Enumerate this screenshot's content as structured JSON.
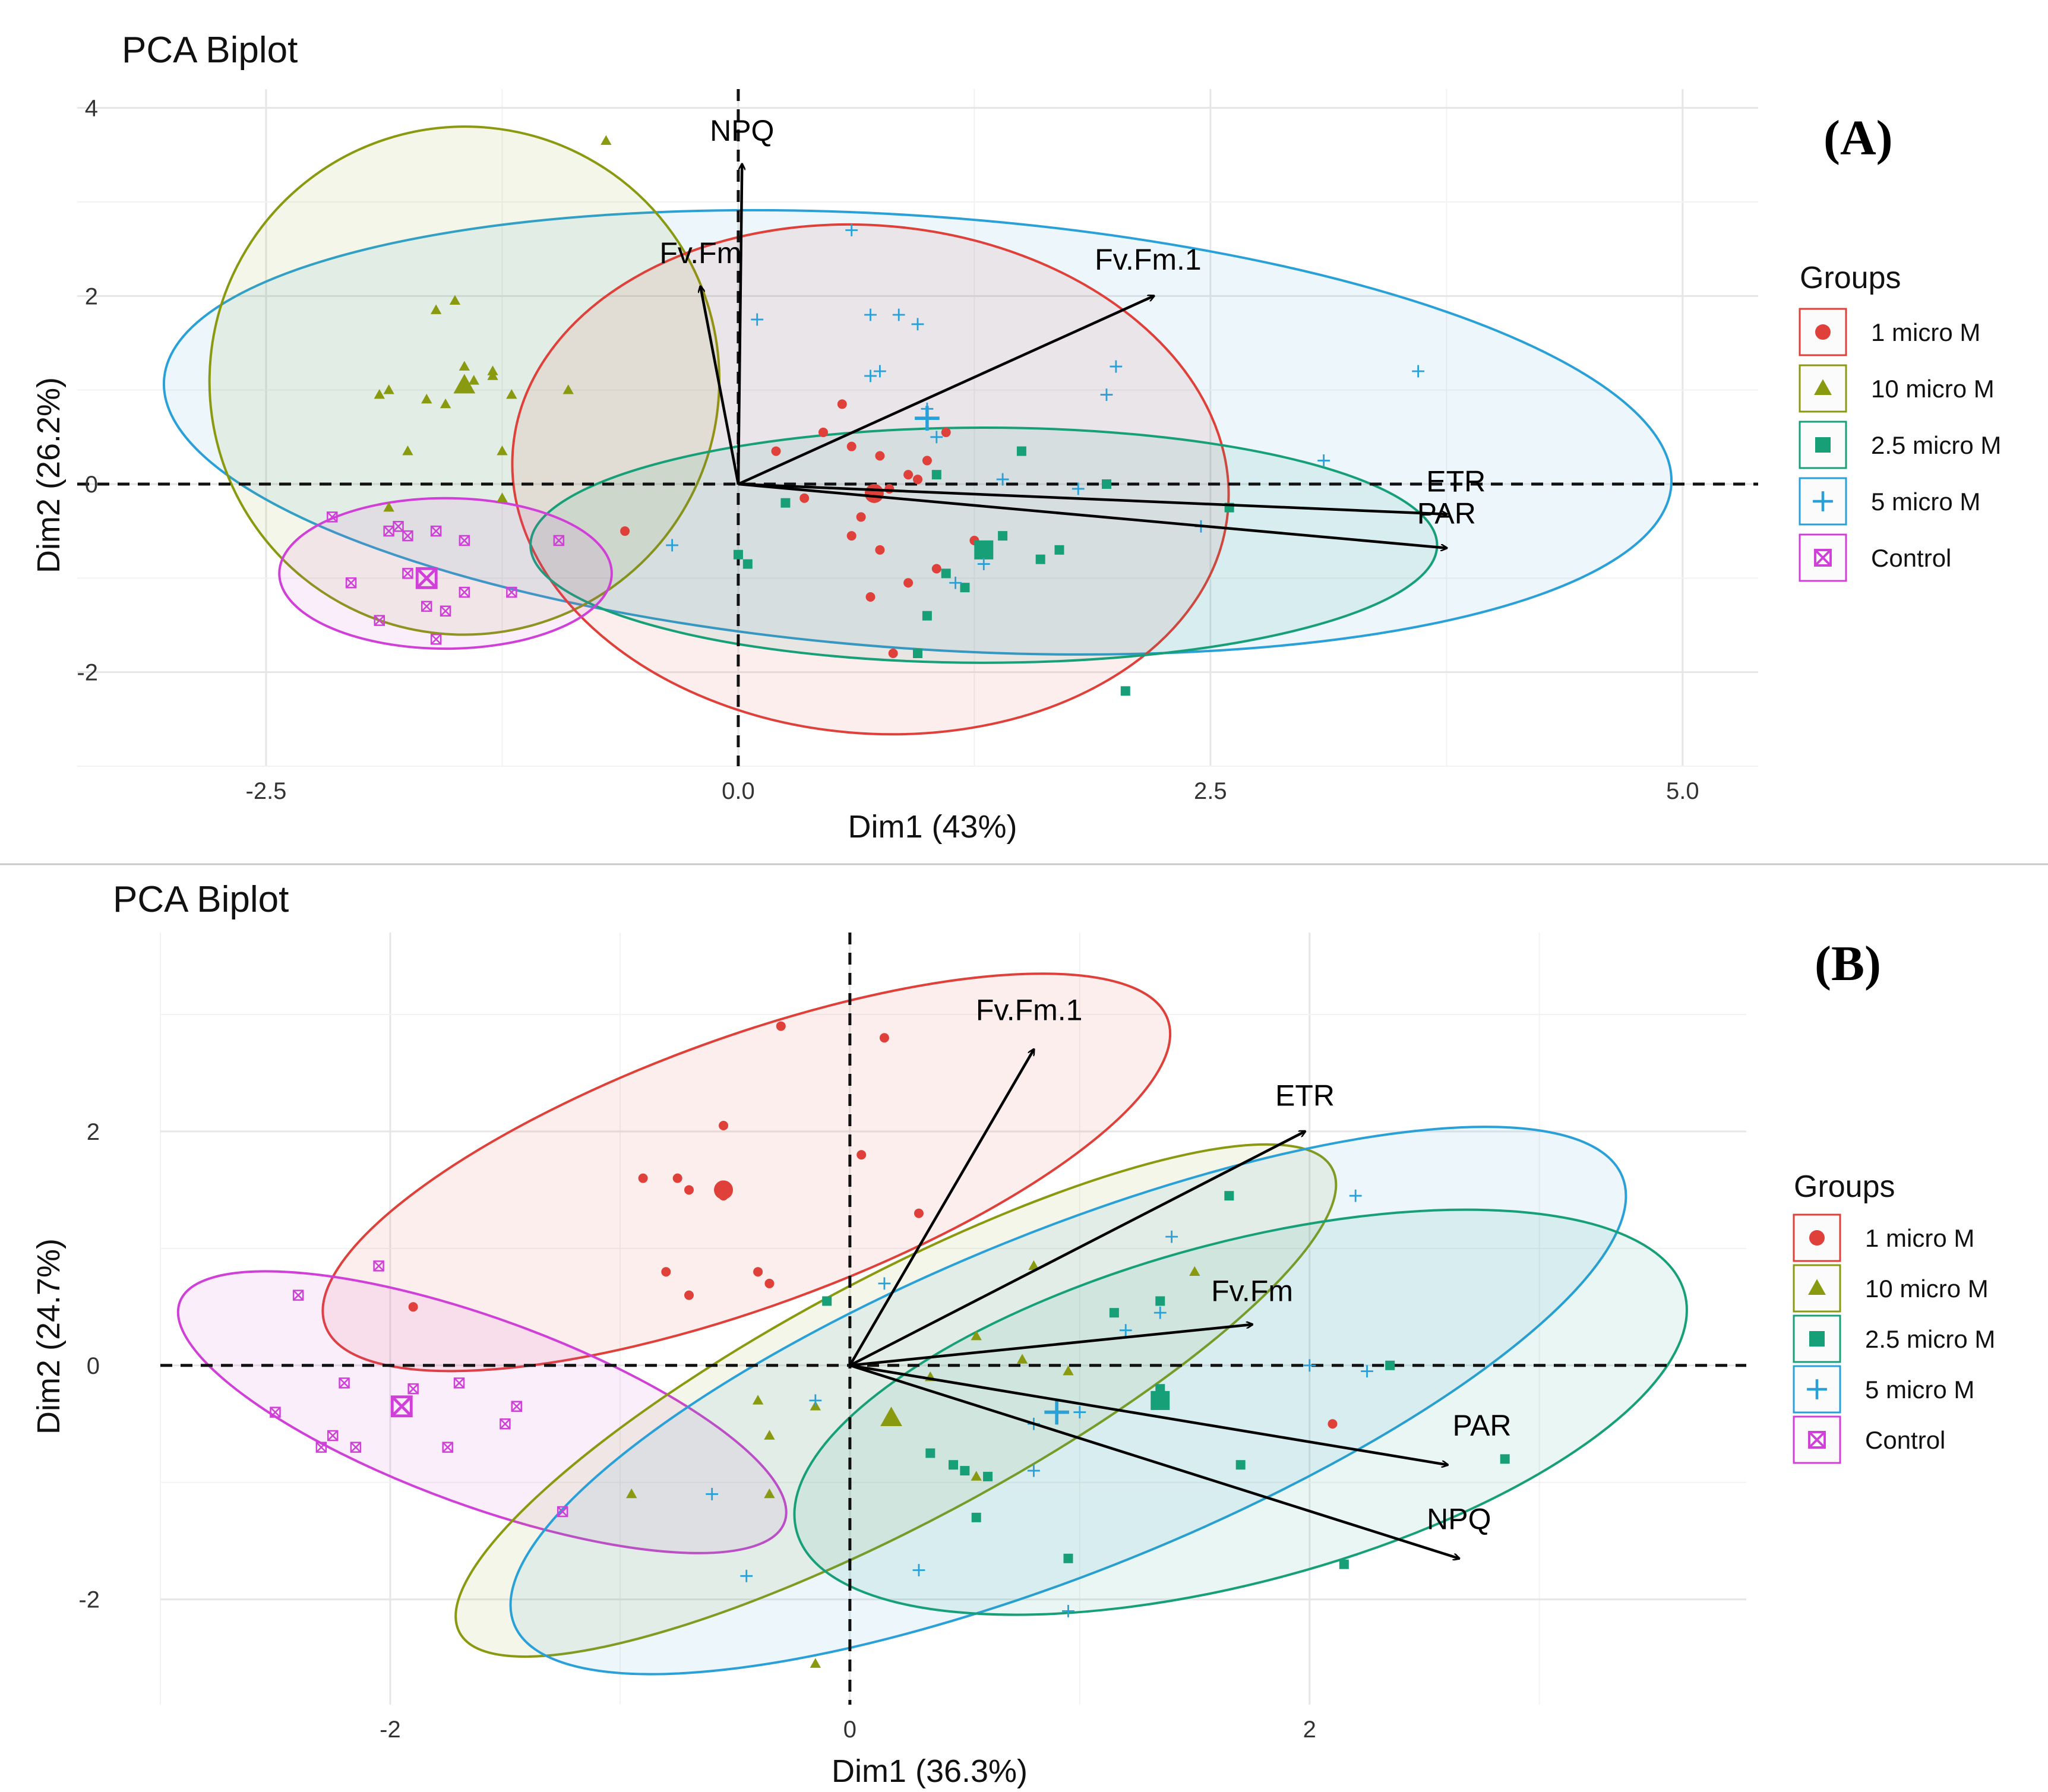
{
  "chart_data": [
    {
      "type": "scatter",
      "panel": "(A)",
      "title": "PCA   Biplot",
      "xlabel": "Dim1 (43%)",
      "ylabel": "Dim2 (26.2%)",
      "xlim": [
        -3.5,
        5.4
      ],
      "ylim": [
        -3.0,
        4.2
      ],
      "xticks": [
        -2.5,
        0.0,
        2.5,
        5.0
      ],
      "xtick_labels": [
        "-2.5",
        "0.0",
        "2.5",
        "5.0"
      ],
      "yticks": [
        4,
        2,
        0,
        -2
      ],
      "ytick_labels": [
        "4",
        "2",
        "0",
        "-2"
      ],
      "legend_title": "Groups",
      "legend": [
        {
          "label": "1 micro M",
          "color": "#e0403a",
          "shape": "circle"
        },
        {
          "label": "10 micro M",
          "color": "#8a9a10",
          "shape": "triangle"
        },
        {
          "label": "2.5 micro M",
          "color": "#17a078",
          "shape": "square"
        },
        {
          "label": "5 micro M",
          "color": "#2aa0d8",
          "shape": "plus"
        },
        {
          "label": "Control",
          "color": "#d040d8",
          "shape": "boxx"
        }
      ],
      "ellipses": [
        {
          "group": "5 micro M",
          "cx": 0.95,
          "cy": 0.55,
          "rx": 4.0,
          "ry": 2.3,
          "angle": 4
        },
        {
          "group": "10 micro M",
          "cx": -1.45,
          "cy": 1.1,
          "rx": 1.35,
          "ry": 2.7,
          "angle": -16
        },
        {
          "group": "1 micro M",
          "cx": 0.7,
          "cy": 0.05,
          "rx": 1.9,
          "ry": 2.7,
          "angle": 5
        },
        {
          "group": "2.5 micro M",
          "cx": 1.3,
          "cy": -0.65,
          "rx": 2.4,
          "ry": 1.25,
          "angle": 0
        },
        {
          "group": "Control",
          "cx": -1.55,
          "cy": -0.95,
          "rx": 0.88,
          "ry": 0.8,
          "angle": 0
        }
      ],
      "arrows": [
        {
          "label": "NPQ",
          "x": 0.02,
          "y": 3.4,
          "lx": 0.02,
          "ly": 3.65
        },
        {
          "label": "Fv.Fm",
          "x": -0.2,
          "y": 2.1,
          "lx": -0.2,
          "ly": 2.35
        },
        {
          "label": "Fv.Fm.1",
          "x": 2.2,
          "y": 2.0,
          "lx": 2.17,
          "ly": 2.28
        },
        {
          "label": "ETR",
          "x": 3.75,
          "y": -0.32,
          "lx": 3.8,
          "ly": -0.08
        },
        {
          "label": "PAR",
          "x": 3.75,
          "y": -0.68,
          "lx": 3.75,
          "ly": -0.42
        }
      ],
      "series": [
        {
          "name": "1 micro M",
          "x": [
            0.2,
            0.6,
            0.75,
            0.9,
            0.8,
            0.65,
            0.45,
            0.7,
            1.05,
            1.25,
            0.6,
            0.75,
            0.82,
            0.95,
            0.35,
            0.55,
            1.1,
            -0.6,
            1.0,
            0.9
          ],
          "y": [
            0.35,
            0.4,
            0.3,
            0.1,
            -0.05,
            -0.35,
            0.55,
            -1.2,
            -0.9,
            -0.6,
            -0.55,
            -0.7,
            -1.8,
            0.05,
            -0.15,
            0.85,
            0.55,
            -0.5,
            0.25,
            -1.05
          ],
          "centroid": [
            0.72,
            -0.1
          ]
        },
        {
          "name": "10 micro M",
          "x": [
            -0.7,
            -1.6,
            -1.5,
            -1.4,
            -1.3,
            -1.2,
            -1.75,
            -1.9,
            -1.85,
            -1.55,
            -1.25,
            -0.9,
            -1.65,
            -1.3,
            -1.25,
            -1.85,
            -1.45
          ],
          "y": [
            3.65,
            1.85,
            1.95,
            1.1,
            1.15,
            0.95,
            0.35,
            0.95,
            -0.25,
            0.85,
            0.35,
            1.0,
            0.9,
            1.2,
            -0.15,
            1.0,
            1.25
          ],
          "centroid": [
            -1.45,
            1.05
          ]
        },
        {
          "name": "2.5 micro M",
          "x": [
            0.05,
            0.25,
            1.1,
            1.5,
            1.6,
            1.7,
            1.0,
            0.95,
            1.2,
            1.95,
            2.6,
            2.05,
            1.4,
            1.05,
            0.0
          ],
          "y": [
            -0.85,
            -0.2,
            -0.95,
            0.35,
            -0.8,
            -0.7,
            -1.4,
            -1.8,
            -1.1,
            0.0,
            -0.25,
            -2.2,
            -0.55,
            0.1,
            -0.75
          ],
          "centroid": [
            1.3,
            -0.7
          ]
        },
        {
          "name": "5 micro M",
          "x": [
            0.6,
            0.85,
            0.7,
            0.95,
            0.75,
            1.0,
            2.0,
            1.95,
            1.4,
            1.8,
            3.6,
            3.1,
            2.45,
            -0.35,
            1.15,
            0.1,
            0.7,
            1.3,
            1.05
          ],
          "y": [
            2.7,
            1.8,
            1.8,
            1.7,
            1.2,
            0.8,
            1.25,
            0.95,
            0.05,
            -0.05,
            1.2,
            0.25,
            -0.45,
            -0.65,
            -1.05,
            1.75,
            1.15,
            -0.85,
            0.5
          ],
          "centroid": [
            1.0,
            0.7
          ]
        },
        {
          "name": "Control",
          "x": [
            -2.15,
            -1.8,
            -1.75,
            -1.6,
            -1.45,
            -1.2,
            -0.95,
            -2.05,
            -1.65,
            -1.45,
            -1.9,
            -1.55,
            -1.6,
            -1.75,
            -1.85
          ],
          "y": [
            -0.35,
            -0.45,
            -0.55,
            -0.5,
            -0.6,
            -1.15,
            -0.6,
            -1.05,
            -1.3,
            -1.15,
            -1.45,
            -1.35,
            -1.65,
            -0.95,
            -0.5
          ],
          "centroid": [
            -1.65,
            -1.0
          ]
        }
      ]
    },
    {
      "type": "scatter",
      "panel": "(B)",
      "title": "PCA   Biplot",
      "xlabel": "Dim1 (36.3%)",
      "ylabel": "Dim2 (24.7%)",
      "xlim": [
        -3.0,
        3.9
      ],
      "ylim": [
        -2.9,
        3.7
      ],
      "xticks": [
        -2,
        0,
        2
      ],
      "xtick_labels": [
        "-2",
        "0",
        "2"
      ],
      "yticks": [
        2,
        0,
        -2
      ],
      "ytick_labels": [
        "2",
        "0",
        "-2"
      ],
      "legend_title": "Groups",
      "legend": [
        {
          "label": "1 micro M",
          "color": "#e0403a",
          "shape": "circle"
        },
        {
          "label": "10 micro M",
          "color": "#8a9a10",
          "shape": "triangle"
        },
        {
          "label": "2.5 micro M",
          "color": "#17a078",
          "shape": "square"
        },
        {
          "label": "5 micro M",
          "color": "#2aa0d8",
          "shape": "plus"
        },
        {
          "label": "Control",
          "color": "#d040d8",
          "shape": "boxx"
        }
      ],
      "ellipses": [
        {
          "group": "1 micro M",
          "cx": -0.45,
          "cy": 1.65,
          "rx": 1.95,
          "ry": 1.15,
          "angle": -20
        },
        {
          "group": "Control",
          "cx": -1.6,
          "cy": -0.4,
          "rx": 1.4,
          "ry": 0.8,
          "angle": 20
        },
        {
          "group": "10 micro M",
          "cx": 0.2,
          "cy": -0.3,
          "rx": 2.15,
          "ry": 1.05,
          "angle": -28
        },
        {
          "group": "5 micro M",
          "cx": 0.95,
          "cy": -0.3,
          "rx": 2.6,
          "ry": 1.45,
          "angle": -22
        },
        {
          "group": "2.5 micro M",
          "cx": 1.7,
          "cy": -0.4,
          "rx": 2.0,
          "ry": 1.45,
          "angle": -15
        }
      ],
      "arrows": [
        {
          "label": "Fv.Fm.1",
          "x": 0.8,
          "y": 2.7,
          "lx": 0.78,
          "ly": 2.95
        },
        {
          "label": "ETR",
          "x": 1.98,
          "y": 2.0,
          "lx": 1.98,
          "ly": 2.22
        },
        {
          "label": "Fv.Fm",
          "x": 1.75,
          "y": 0.35,
          "lx": 1.75,
          "ly": 0.55
        },
        {
          "label": "PAR",
          "x": 2.6,
          "y": -0.85,
          "lx": 2.75,
          "ly": -0.6
        },
        {
          "label": "NPQ",
          "x": 2.65,
          "y": -1.65,
          "lx": 2.65,
          "ly": -1.4
        }
      ],
      "series": [
        {
          "name": "1 micro M",
          "x": [
            -0.3,
            0.15,
            -0.55,
            -0.9,
            -0.75,
            -0.7,
            -0.55,
            -0.8,
            -0.4,
            -0.35,
            0.05,
            0.3,
            -0.7,
            -1.9,
            2.1
          ],
          "y": [
            2.9,
            2.8,
            2.05,
            1.6,
            1.6,
            1.5,
            1.45,
            0.8,
            0.8,
            0.7,
            1.8,
            1.3,
            0.6,
            0.5,
            -0.5
          ],
          "centroid": [
            -0.55,
            1.5
          ]
        },
        {
          "name": "10 micro M",
          "x": [
            0.8,
            1.5,
            0.55,
            0.75,
            0.95,
            -0.4,
            -0.15,
            -0.35,
            -0.35,
            0.55,
            -0.95,
            -0.15,
            0.35
          ],
          "y": [
            0.85,
            0.8,
            0.25,
            0.05,
            -0.05,
            -0.3,
            -0.35,
            -0.6,
            -1.1,
            -0.95,
            -1.1,
            -2.55,
            -0.1
          ],
          "centroid": [
            0.18,
            -0.45
          ]
        },
        {
          "name": "2.5 micro M",
          "x": [
            -0.1,
            1.15,
            1.35,
            1.65,
            1.7,
            2.35,
            2.85,
            2.15,
            0.95,
            0.55,
            0.35,
            0.45,
            0.5,
            0.6,
            1.35
          ],
          "y": [
            0.55,
            0.45,
            0.55,
            1.45,
            -0.85,
            0.0,
            -0.8,
            -1.7,
            -1.65,
            -1.3,
            -0.75,
            -0.85,
            -0.9,
            -0.95,
            -0.2
          ],
          "centroid": [
            1.35,
            -0.3
          ]
        },
        {
          "name": "5 micro M",
          "x": [
            0.15,
            1.4,
            2.2,
            1.2,
            1.35,
            0.8,
            1.0,
            2.25,
            0.8,
            -0.15,
            -0.6,
            -0.45,
            0.3,
            0.95,
            2.0
          ],
          "y": [
            0.7,
            1.1,
            1.45,
            0.3,
            0.45,
            -0.5,
            -0.4,
            -0.05,
            -0.9,
            -0.3,
            -1.1,
            -1.8,
            -1.75,
            -2.1,
            0.0
          ],
          "centroid": [
            0.9,
            -0.4
          ]
        },
        {
          "name": "Control",
          "x": [
            -2.4,
            -2.05,
            -2.5,
            -2.2,
            -2.15,
            -1.9,
            -1.75,
            -1.7,
            -1.5,
            -1.45,
            -1.25,
            -2.3,
            -2.25
          ],
          "y": [
            0.6,
            0.85,
            -0.4,
            -0.15,
            -0.7,
            -0.2,
            -0.7,
            -0.15,
            -0.5,
            -0.35,
            -1.25,
            -0.7,
            -0.6
          ],
          "centroid": [
            -1.95,
            -0.35
          ]
        }
      ]
    }
  ]
}
